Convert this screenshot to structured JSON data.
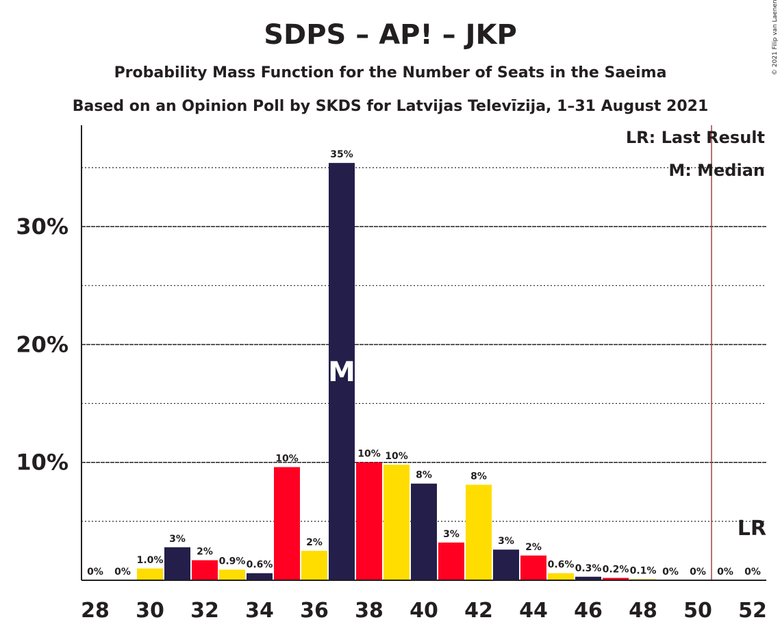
{
  "chart_data": {
    "type": "bar",
    "title": "SDPS – AP! – JKP",
    "subtitle_1": "Probability Mass Function for the Number of Seats in the Saeima",
    "subtitle_2": "Based on an Opinion Poll by SKDS for Latvijas Televīzija, 1–31 August 2021",
    "copyright": "© 2021 Filip van Laenen",
    "legend": {
      "last_result": "LR: Last Result",
      "median": "M: Median"
    },
    "median_marker": "M",
    "last_result_marker": "LR",
    "median_seat": 37,
    "last_result_seat": 50.5,
    "x": [
      28,
      29,
      30,
      31,
      32,
      33,
      34,
      35,
      36,
      37,
      38,
      39,
      40,
      41,
      42,
      43,
      44,
      45,
      46,
      47,
      48,
      49,
      50,
      51,
      52
    ],
    "values": [
      0,
      0,
      1.0,
      2.8,
      1.7,
      0.9,
      0.6,
      9.6,
      2.5,
      35.4,
      10.0,
      9.8,
      8.2,
      3.2,
      8.1,
      2.6,
      2.1,
      0.6,
      0.3,
      0.2,
      0.1,
      0,
      0,
      0,
      0
    ],
    "labels": [
      "0%",
      "0%",
      "1.0%",
      "3%",
      "2%",
      "0.9%",
      "0.6%",
      "10%",
      "2%",
      "35%",
      "10%",
      "10%",
      "8%",
      "3%",
      "8%",
      "3%",
      "2%",
      "0.6%",
      "0.3%",
      "0.2%",
      "0.1%",
      "0%",
      "0%",
      "0%",
      "0%"
    ],
    "x_tick_labels": [
      "28",
      "30",
      "32",
      "34",
      "36",
      "38",
      "40",
      "42",
      "44",
      "46",
      "48",
      "50",
      "52"
    ],
    "y_tick_labels": [
      "10%",
      "20%",
      "30%"
    ],
    "ylim": [
      0,
      38.6
    ],
    "bar_colors": [
      "#231f4a",
      "#ff0022",
      "#ffdd00"
    ],
    "axis_color": "#231f20",
    "last_result_color": "#a04040"
  }
}
